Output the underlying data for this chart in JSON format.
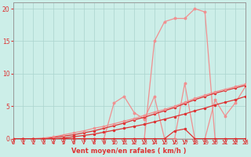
{
  "xlabel": "Vent moyen/en rafales ( km/h )",
  "background_color": "#cceee8",
  "grid_color": "#b0d8d0",
  "line_dark": "#dd3333",
  "line_light": "#f09090",
  "xlim": [
    0,
    23
  ],
  "ylim": [
    0,
    21
  ],
  "x_ticks": [
    0,
    1,
    2,
    3,
    4,
    5,
    6,
    7,
    8,
    9,
    10,
    11,
    12,
    13,
    14,
    15,
    16,
    17,
    18,
    19,
    20,
    21,
    22,
    23
  ],
  "y_ticks": [
    0,
    5,
    10,
    15,
    20
  ],
  "x": [
    0,
    1,
    2,
    3,
    4,
    5,
    6,
    7,
    8,
    9,
    10,
    11,
    12,
    13,
    14,
    15,
    16,
    17,
    18,
    19,
    20,
    21,
    22,
    23
  ],
  "line_spike_y": [
    0,
    0,
    0,
    0,
    0,
    0,
    0,
    0,
    0,
    0,
    0,
    0,
    0,
    0,
    15,
    18,
    18.5,
    18.5,
    20,
    19.5,
    0,
    0,
    0,
    0
  ],
  "line_diag1_y": [
    0,
    0,
    0,
    0,
    0.2,
    0.4,
    0.6,
    0.9,
    1.2,
    1.6,
    2.0,
    2.4,
    2.9,
    3.3,
    3.8,
    4.3,
    4.8,
    5.4,
    6.0,
    6.5,
    7.0,
    7.4,
    7.8,
    8.2
  ],
  "line_diag2_y": [
    0,
    0,
    0,
    0.1,
    0.3,
    0.6,
    0.9,
    1.2,
    1.6,
    1.9,
    2.3,
    2.7,
    3.1,
    3.6,
    4.1,
    4.5,
    5.0,
    5.6,
    6.2,
    6.7,
    7.2,
    7.6,
    8.0,
    8.4
  ],
  "line_mid_y": [
    0,
    0,
    0,
    0,
    0,
    0.1,
    0.3,
    0.5,
    0.7,
    1.0,
    1.3,
    1.6,
    1.9,
    2.2,
    2.6,
    3.0,
    3.4,
    3.8,
    4.3,
    4.7,
    5.2,
    5.6,
    6.0,
    6.5
  ],
  "line_zero_y": [
    0,
    0,
    0,
    0,
    0,
    0,
    0,
    0,
    0,
    0,
    0,
    0,
    0,
    0,
    0,
    0,
    1.2,
    1.5,
    0,
    0,
    0,
    0,
    0,
    0
  ],
  "line_zigzag_y": [
    0,
    0,
    0,
    0,
    0,
    0,
    0,
    0,
    0,
    0,
    5.5,
    6.5,
    4,
    3,
    6.5,
    0,
    0,
    8.5,
    0,
    0,
    6,
    3.5,
    5.5,
    8
  ],
  "arrow_angles": [
    225,
    225,
    225,
    225,
    225,
    225,
    225,
    225,
    225,
    225,
    225,
    225,
    225,
    225,
    225,
    225,
    270,
    270,
    225,
    225,
    225,
    225,
    225,
    225
  ]
}
